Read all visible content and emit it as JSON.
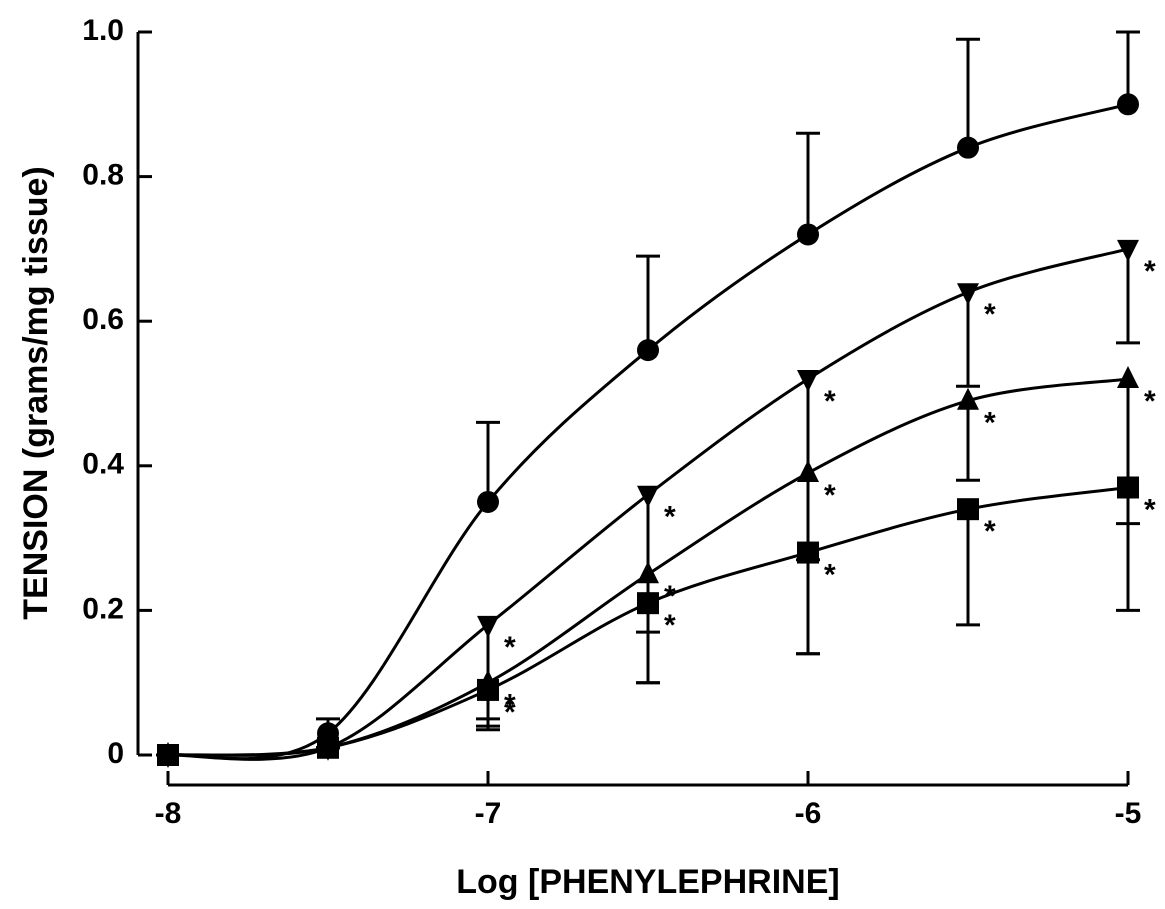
{
  "chart_data": {
    "type": "line",
    "x_label": "Log [PHENYLEPHRINE]",
    "y_label": "TENSION (grams/mg tissue)",
    "x": [
      -8,
      -7.5,
      -7,
      -6.5,
      -6,
      -5.5,
      -5
    ],
    "xlim": [
      -8,
      -5
    ],
    "xticks": [
      -8,
      -7,
      -6,
      -5
    ],
    "ylim": [
      0,
      1
    ],
    "yticks": [
      0,
      0.2,
      0.4,
      0.6,
      0.8,
      {
        "value": 1,
        "label": "1.0"
      }
    ],
    "series": [
      {
        "marker": "circle",
        "color": "#000000",
        "error_side": "up",
        "values": [
          0,
          0.03,
          0.35,
          0.56,
          0.72,
          0.84,
          0.9
        ],
        "errors": [
          0,
          0.02,
          0.11,
          0.13,
          0.14,
          0.15,
          0.1
        ],
        "annotations": [
          null,
          null,
          null,
          null,
          null,
          null,
          null
        ]
      },
      {
        "marker": "triangle-down",
        "color": "#000000",
        "error_side": "down",
        "values": [
          0,
          0.01,
          0.18,
          0.36,
          0.52,
          0.64,
          0.7
        ],
        "errors": [
          0,
          0,
          0.13,
          0.19,
          0.25,
          0.13,
          0.13
        ],
        "annotations": [
          null,
          null,
          "*",
          "*",
          "*",
          "*",
          "*"
        ]
      },
      {
        "marker": "triangle",
        "color": "#000000",
        "error_side": "down",
        "values": [
          0,
          0.01,
          0.1,
          0.25,
          0.39,
          0.49,
          0.52
        ],
        "errors": [
          0,
          0,
          0.06,
          0.15,
          0.25,
          0.11,
          0.2
        ],
        "annotations": [
          null,
          null,
          "*",
          "*",
          "*",
          "*",
          "*"
        ]
      },
      {
        "marker": "square",
        "color": "#000000",
        "error_side": "down",
        "values": [
          0,
          0.01,
          0.09,
          0.21,
          0.28,
          0.34,
          0.37
        ],
        "errors": [
          0,
          0,
          0.055,
          0.11,
          0.14,
          0.16,
          0.17
        ],
        "annotations": [
          null,
          null,
          "*",
          "*",
          "*",
          "*",
          "*"
        ]
      }
    ]
  }
}
